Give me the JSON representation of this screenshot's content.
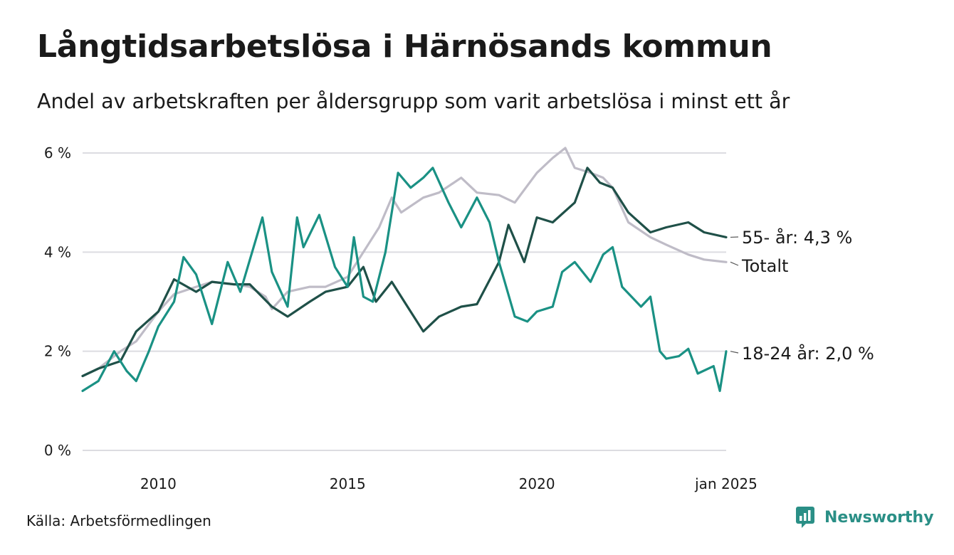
{
  "header": {
    "title": "Långtidsarbetslösa i Härnösands kommun",
    "subtitle": "Andel av arbetskraften per åldersgrupp som varit arbetslösa i minst ett år"
  },
  "footer": {
    "source": "Källa: Arbetsförmedlingen",
    "brand": "Newsworthy",
    "brand_icon": "newsworthy-logo-icon",
    "brand_color": "#2a8f86"
  },
  "chart_data": {
    "type": "line",
    "title": "Långtidsarbetslösa i Härnösands kommun",
    "subtitle": "Andel av arbetskraften per åldersgrupp som varit arbetslösa i minst ett år",
    "xlabel": "",
    "ylabel": "",
    "xlim": [
      "2008-01",
      "2025-01"
    ],
    "ylim": [
      0,
      6
    ],
    "y_ticks": [
      0,
      2,
      4,
      6
    ],
    "y_tick_labels": [
      "0 %",
      "2 %",
      "4 %",
      "6 %"
    ],
    "x_ticks": [
      "2010-01",
      "2015-01",
      "2020-01",
      "2025-01"
    ],
    "x_tick_labels": [
      "2010",
      "2015",
      "2020",
      "jan 2025"
    ],
    "grid": true,
    "legend": "end-of-line labels",
    "series": [
      {
        "name": "Totalt",
        "end_label": "Totalt",
        "color": "#bfbcc7",
        "points": [
          [
            "2008-01",
            1.5
          ],
          [
            "2008-06",
            1.65
          ],
          [
            "2009-01",
            2.0
          ],
          [
            "2009-06",
            2.2
          ],
          [
            "2010-01",
            2.8
          ],
          [
            "2010-06",
            3.15
          ],
          [
            "2011-01",
            3.3
          ],
          [
            "2011-06",
            3.4
          ],
          [
            "2012-01",
            3.35
          ],
          [
            "2012-06",
            3.3
          ],
          [
            "2012-11",
            3.1
          ],
          [
            "2013-01",
            2.85
          ],
          [
            "2013-06",
            3.2
          ],
          [
            "2014-01",
            3.3
          ],
          [
            "2014-06",
            3.3
          ],
          [
            "2015-01",
            3.5
          ],
          [
            "2015-06",
            4.0
          ],
          [
            "2015-11",
            4.5
          ],
          [
            "2016-03",
            5.1
          ],
          [
            "2016-06",
            4.8
          ],
          [
            "2017-01",
            5.1
          ],
          [
            "2017-06",
            5.2
          ],
          [
            "2018-01",
            5.5
          ],
          [
            "2018-06",
            5.2
          ],
          [
            "2019-01",
            5.15
          ],
          [
            "2019-06",
            5.0
          ],
          [
            "2020-01",
            5.6
          ],
          [
            "2020-06",
            5.9
          ],
          [
            "2020-10",
            6.1
          ],
          [
            "2021-01",
            5.7
          ],
          [
            "2021-06",
            5.6
          ],
          [
            "2021-10",
            5.5
          ],
          [
            "2022-01",
            5.3
          ],
          [
            "2022-06",
            4.6
          ],
          [
            "2023-01",
            4.3
          ],
          [
            "2023-06",
            4.15
          ],
          [
            "2024-01",
            3.95
          ],
          [
            "2024-06",
            3.85
          ],
          [
            "2025-01",
            3.8
          ]
        ]
      },
      {
        "name": "55- år",
        "end_label": "55- år: 4,3 %",
        "color": "#1f5048",
        "points": [
          [
            "2008-01",
            1.5
          ],
          [
            "2008-06",
            1.65
          ],
          [
            "2009-01",
            1.8
          ],
          [
            "2009-06",
            2.4
          ],
          [
            "2010-01",
            2.8
          ],
          [
            "2010-06",
            3.45
          ],
          [
            "2011-01",
            3.2
          ],
          [
            "2011-06",
            3.4
          ],
          [
            "2012-01",
            3.35
          ],
          [
            "2012-06",
            3.35
          ],
          [
            "2013-01",
            2.9
          ],
          [
            "2013-06",
            2.7
          ],
          [
            "2014-01",
            3.0
          ],
          [
            "2014-06",
            3.2
          ],
          [
            "2015-01",
            3.3
          ],
          [
            "2015-06",
            3.7
          ],
          [
            "2015-10",
            3.0
          ],
          [
            "2016-03",
            3.4
          ],
          [
            "2016-08",
            2.9
          ],
          [
            "2017-01",
            2.4
          ],
          [
            "2017-06",
            2.7
          ],
          [
            "2018-01",
            2.9
          ],
          [
            "2018-06",
            2.95
          ],
          [
            "2019-01",
            3.8
          ],
          [
            "2019-04",
            4.55
          ],
          [
            "2019-09",
            3.8
          ],
          [
            "2020-01",
            4.7
          ],
          [
            "2020-06",
            4.6
          ],
          [
            "2021-01",
            5.0
          ],
          [
            "2021-05",
            5.7
          ],
          [
            "2021-09",
            5.4
          ],
          [
            "2022-01",
            5.3
          ],
          [
            "2022-06",
            4.8
          ],
          [
            "2023-01",
            4.4
          ],
          [
            "2023-06",
            4.5
          ],
          [
            "2024-01",
            4.6
          ],
          [
            "2024-06",
            4.4
          ],
          [
            "2025-01",
            4.3
          ]
        ]
      },
      {
        "name": "18-24 år",
        "end_label": "18-24 år: 2,0 %",
        "color": "#1a9184",
        "points": [
          [
            "2008-01",
            1.2
          ],
          [
            "2008-06",
            1.4
          ],
          [
            "2008-11",
            2.0
          ],
          [
            "2009-03",
            1.6
          ],
          [
            "2009-06",
            1.4
          ],
          [
            "2009-10",
            2.0
          ],
          [
            "2010-01",
            2.5
          ],
          [
            "2010-06",
            3.0
          ],
          [
            "2010-09",
            3.9
          ],
          [
            "2011-01",
            3.55
          ],
          [
            "2011-06",
            2.55
          ],
          [
            "2011-11",
            3.8
          ],
          [
            "2012-03",
            3.2
          ],
          [
            "2012-10",
            4.7
          ],
          [
            "2013-01",
            3.6
          ],
          [
            "2013-06",
            2.9
          ],
          [
            "2013-09",
            4.7
          ],
          [
            "2013-11",
            4.1
          ],
          [
            "2014-04",
            4.75
          ],
          [
            "2014-09",
            3.7
          ],
          [
            "2015-01",
            3.3
          ],
          [
            "2015-03",
            4.3
          ],
          [
            "2015-06",
            3.1
          ],
          [
            "2015-09",
            3.0
          ],
          [
            "2016-01",
            4.0
          ],
          [
            "2016-05",
            5.6
          ],
          [
            "2016-09",
            5.3
          ],
          [
            "2017-01",
            5.5
          ],
          [
            "2017-04",
            5.7
          ],
          [
            "2017-09",
            5.0
          ],
          [
            "2018-01",
            4.5
          ],
          [
            "2018-06",
            5.1
          ],
          [
            "2018-10",
            4.6
          ],
          [
            "2019-01",
            3.8
          ],
          [
            "2019-06",
            2.7
          ],
          [
            "2019-10",
            2.6
          ],
          [
            "2020-01",
            2.8
          ],
          [
            "2020-06",
            2.9
          ],
          [
            "2020-09",
            3.6
          ],
          [
            "2021-01",
            3.8
          ],
          [
            "2021-06",
            3.4
          ],
          [
            "2021-10",
            3.95
          ],
          [
            "2022-01",
            4.1
          ],
          [
            "2022-04",
            3.3
          ],
          [
            "2022-10",
            2.9
          ],
          [
            "2023-01",
            3.1
          ],
          [
            "2023-04",
            2.0
          ],
          [
            "2023-06",
            1.85
          ],
          [
            "2023-10",
            1.9
          ],
          [
            "2024-01",
            2.05
          ],
          [
            "2024-04",
            1.55
          ],
          [
            "2024-09",
            1.7
          ],
          [
            "2024-11",
            1.2
          ],
          [
            "2025-01",
            2.0
          ]
        ]
      }
    ]
  }
}
